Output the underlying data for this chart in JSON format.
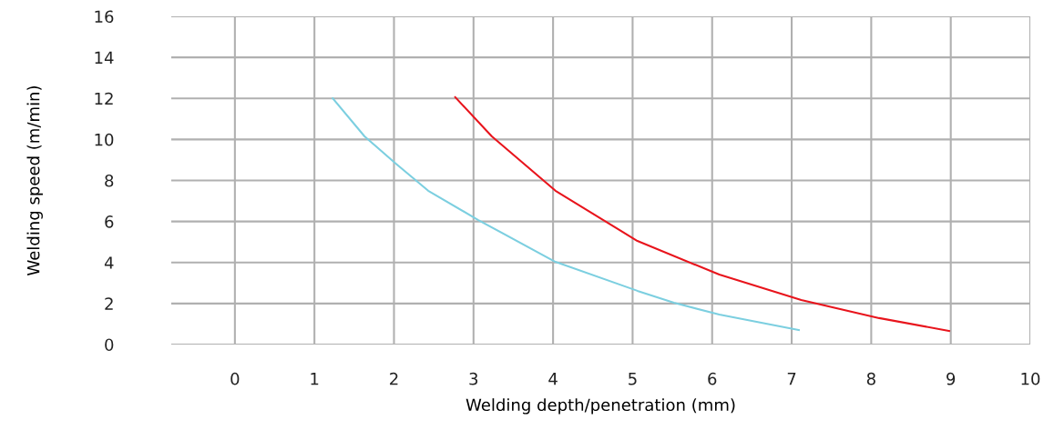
{
  "chart_data": {
    "type": "line",
    "xlabel": "Welding depth/penetration (mm)",
    "ylabel": "Welding speed (m/min)",
    "xlim": [
      -0.8,
      10
    ],
    "xticks": [
      0,
      1,
      2,
      3,
      4,
      5,
      6,
      7,
      8,
      9,
      10
    ],
    "ylim": [
      0,
      16
    ],
    "yticks": [
      0,
      2,
      4,
      6,
      8,
      10,
      12,
      14,
      16
    ],
    "grid": true,
    "marker": "none",
    "line_style": "solid",
    "series": [
      {
        "color": "#e8141c",
        "x": [
          2.77,
          3.23,
          4.03,
          5.06,
          6.09,
          7.12,
          8.1,
          8.98
        ],
        "values": [
          12.06,
          10.15,
          7.5,
          5.05,
          3.41,
          2.17,
          1.29,
          0.66
        ]
      },
      {
        "color": "#7ccfe0",
        "x": [
          1.23,
          1.63,
          2.03,
          2.43,
          3.06,
          4.03,
          5.06,
          5.52,
          6.09,
          7.09
        ],
        "values": [
          12.0,
          10.15,
          8.8,
          7.5,
          6.07,
          4.03,
          2.62,
          2.04,
          1.46,
          0.71
        ]
      }
    ]
  }
}
